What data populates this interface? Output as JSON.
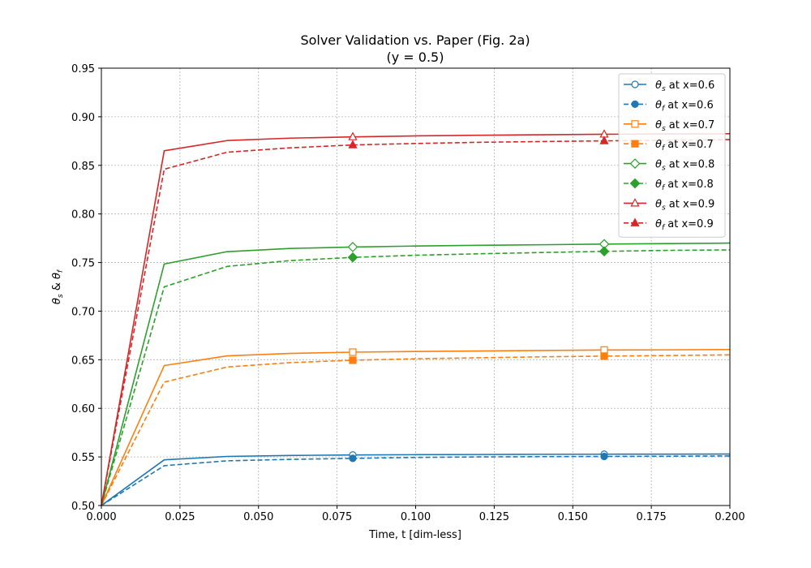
{
  "chart_data": {
    "type": "line",
    "title": "Solver Validation vs. Paper (Fig. 2a)",
    "subtitle": "(y = 0.5)",
    "xlabel": "Time, t [dim-less]",
    "ylabel_main": "θ",
    "ylabel_sub_s": "s",
    "ylabel_amp": " & ",
    "ylabel_sub_f": "f",
    "xlim": [
      0.0,
      0.2
    ],
    "ylim": [
      0.5,
      0.95
    ],
    "x_ticks": [
      0.0,
      0.025,
      0.05,
      0.075,
      0.1,
      0.125,
      0.15,
      0.175,
      0.2
    ],
    "x_tick_labels": [
      "0.000",
      "0.025",
      "0.050",
      "0.075",
      "0.100",
      "0.125",
      "0.150",
      "0.175",
      "0.200"
    ],
    "y_ticks": [
      0.5,
      0.55,
      0.6,
      0.65,
      0.7,
      0.75,
      0.8,
      0.85,
      0.9,
      0.95
    ],
    "y_tick_labels": [
      "0.50",
      "0.55",
      "0.60",
      "0.65",
      "0.70",
      "0.75",
      "0.80",
      "0.85",
      "0.90",
      "0.95"
    ],
    "grid": true,
    "legend_position": "top-right",
    "x": [
      0.0,
      0.02,
      0.04,
      0.06,
      0.08,
      0.1,
      0.12,
      0.14,
      0.16,
      0.18,
      0.2
    ],
    "marker_x": [
      0.08,
      0.16
    ],
    "series": [
      {
        "name_symbol": "θ",
        "name_sub": "s",
        "name_rest": " at x=0.6",
        "color": "#1f77b4",
        "style": "solid",
        "marker": "circle",
        "filled": false,
        "values": [
          0.5,
          0.547,
          0.5505,
          0.5515,
          0.552,
          0.5523,
          0.5525,
          0.5527,
          0.5528,
          0.5529,
          0.553
        ],
        "marker_values": [
          0.552,
          0.5528
        ]
      },
      {
        "name_symbol": "θ",
        "name_sub": "f",
        "name_rest": " at x=0.6",
        "color": "#1f77b4",
        "style": "dashed",
        "marker": "circle",
        "filled": true,
        "values": [
          0.5,
          0.541,
          0.546,
          0.5475,
          0.5485,
          0.5495,
          0.55,
          0.5503,
          0.5505,
          0.5507,
          0.551
        ],
        "marker_values": [
          0.5485,
          0.5505
        ]
      },
      {
        "name_symbol": "θ",
        "name_sub": "s",
        "name_rest": " at x=0.7",
        "color": "#ff7f0e",
        "style": "solid",
        "marker": "square",
        "filled": false,
        "values": [
          0.5,
          0.644,
          0.654,
          0.6565,
          0.6578,
          0.6585,
          0.659,
          0.6595,
          0.66,
          0.6602,
          0.6605
        ],
        "marker_values": [
          0.6578,
          0.66
        ]
      },
      {
        "name_symbol": "θ",
        "name_sub": "f",
        "name_rest": " at x=0.7",
        "color": "#ff7f0e",
        "style": "dashed",
        "marker": "square",
        "filled": true,
        "values": [
          0.5,
          0.627,
          0.6425,
          0.647,
          0.6495,
          0.651,
          0.652,
          0.653,
          0.6537,
          0.6543,
          0.655
        ],
        "marker_values": [
          0.6495,
          0.6537
        ]
      },
      {
        "name_symbol": "θ",
        "name_sub": "s",
        "name_rest": " at x=0.8",
        "color": "#2ca02c",
        "style": "solid",
        "marker": "diamond",
        "filled": false,
        "values": [
          0.5,
          0.7485,
          0.7612,
          0.7645,
          0.766,
          0.767,
          0.7677,
          0.7683,
          0.769,
          0.7695,
          0.77
        ],
        "marker_values": [
          0.766,
          0.769
        ]
      },
      {
        "name_symbol": "θ",
        "name_sub": "f",
        "name_rest": " at x=0.8",
        "color": "#2ca02c",
        "style": "dashed",
        "marker": "diamond",
        "filled": true,
        "values": [
          0.5,
          0.725,
          0.746,
          0.752,
          0.7553,
          0.7575,
          0.759,
          0.7603,
          0.7615,
          0.7625,
          0.763
        ],
        "marker_values": [
          0.7553,
          0.7615
        ]
      },
      {
        "name_symbol": "θ",
        "name_sub": "s",
        "name_rest": " at x=0.9",
        "color": "#d62728",
        "style": "solid",
        "marker": "triangle",
        "filled": false,
        "values": [
          0.5,
          0.865,
          0.8755,
          0.878,
          0.8793,
          0.8803,
          0.881,
          0.8815,
          0.882,
          0.8823,
          0.8825
        ],
        "marker_values": [
          0.8793,
          0.882
        ]
      },
      {
        "name_symbol": "θ",
        "name_sub": "f",
        "name_rest": " at x=0.9",
        "color": "#d62728",
        "style": "dashed",
        "marker": "triangle",
        "filled": true,
        "values": [
          0.5,
          0.846,
          0.8635,
          0.868,
          0.871,
          0.8725,
          0.8737,
          0.8745,
          0.8752,
          0.8758,
          0.8765
        ],
        "marker_values": [
          0.871,
          0.8752
        ]
      }
    ]
  }
}
